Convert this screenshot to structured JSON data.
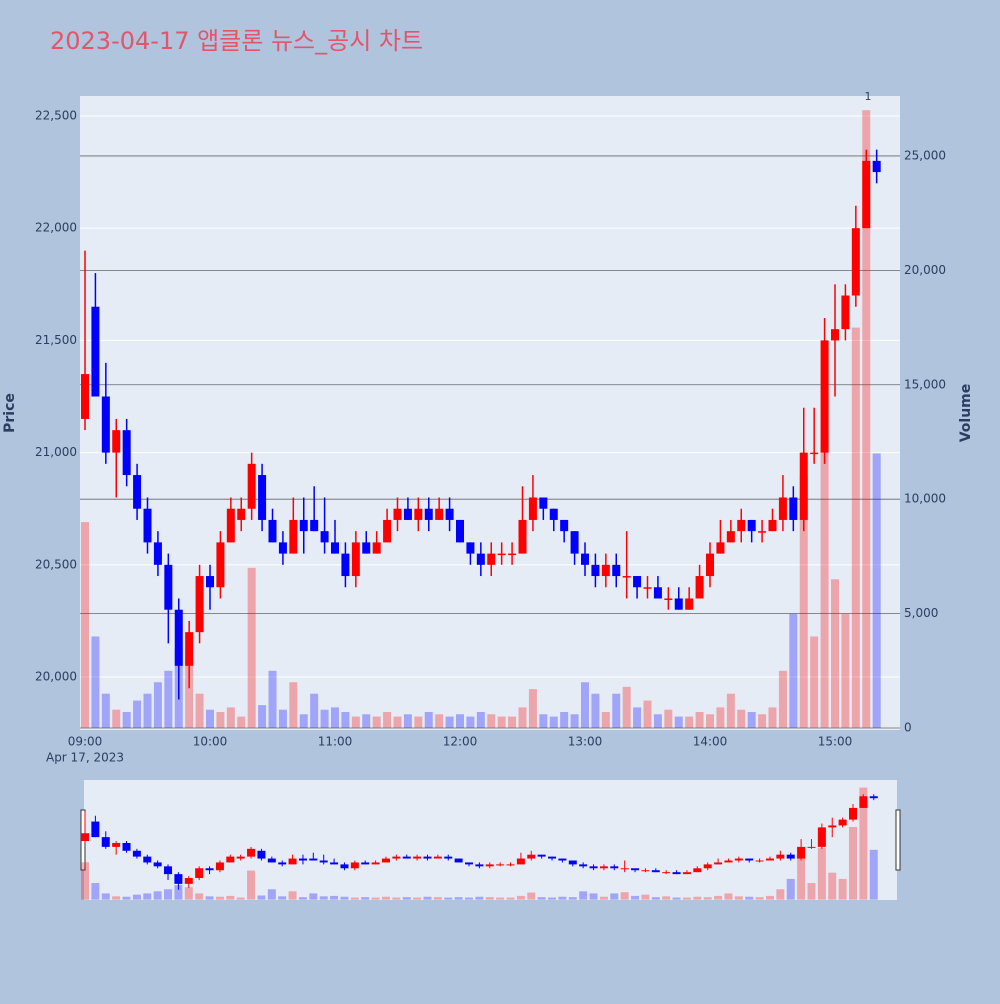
{
  "chart_data": {
    "type": "candlestick",
    "title": "2023-04-17 앱클론 뉴스_공시 차트",
    "y_title": "Price",
    "y2_title": "Volume",
    "x_date": "Apr 17, 2023",
    "annotation": "1",
    "up_color": "#ff0000",
    "down_color": "#0000ff",
    "ylim": [
      19764,
      22589
    ],
    "yticks": [
      {
        "value": 20000,
        "label": "20,000"
      },
      {
        "value": 20500,
        "label": "20,500"
      },
      {
        "value": 21000,
        "label": "21,000"
      },
      {
        "value": 21500,
        "label": "21,500"
      },
      {
        "value": 22000,
        "label": "22,000"
      },
      {
        "value": 22500,
        "label": "22,500"
      }
    ],
    "y2lim": [
      -87,
      27620
    ],
    "y2ticks": [
      0,
      {
        "value": 5000,
        "label": "5,000"
      },
      {
        "value": 10000,
        "label": "10,000"
      },
      {
        "value": 15000,
        "label": "15,000"
      },
      {
        "value": 20000,
        "label": "20,000"
      },
      {
        "value": 25000,
        "label": "25,000"
      }
    ],
    "xticks": [
      "09:00",
      "10:00",
      "11:00",
      "12:00",
      "13:00",
      "14:00",
      "15:00"
    ],
    "x": [
      "09:00",
      "09:05",
      "09:10",
      "09:15",
      "09:20",
      "09:25",
      "09:30",
      "09:35",
      "09:40",
      "09:45",
      "09:50",
      "09:55",
      "10:00",
      "10:05",
      "10:10",
      "10:15",
      "10:20",
      "10:25",
      "10:30",
      "10:35",
      "10:40",
      "10:45",
      "10:50",
      "10:55",
      "11:00",
      "11:05",
      "11:10",
      "11:15",
      "11:20",
      "11:25",
      "11:30",
      "11:35",
      "11:40",
      "11:45",
      "11:50",
      "11:55",
      "12:00",
      "12:05",
      "12:10",
      "12:15",
      "12:20",
      "12:25",
      "12:30",
      "12:35",
      "12:40",
      "12:45",
      "12:50",
      "12:55",
      "13:00",
      "13:05",
      "13:10",
      "13:15",
      "13:20",
      "13:25",
      "13:30",
      "13:35",
      "13:40",
      "13:45",
      "13:50",
      "13:55",
      "14:00",
      "14:05",
      "14:10",
      "14:15",
      "14:20",
      "14:25",
      "14:30",
      "14:35",
      "14:40",
      "14:45",
      "14:50",
      "14:55",
      "15:00",
      "15:05",
      "15:10",
      "15:15",
      "15:20"
    ],
    "open": [
      21150,
      21650,
      21250,
      21000,
      21100,
      20900,
      20750,
      20600,
      20500,
      20300,
      20050,
      20200,
      20450,
      20400,
      20600,
      20700,
      20750,
      20900,
      20700,
      20600,
      20550,
      20700,
      20700,
      20650,
      20600,
      20550,
      20450,
      20600,
      20550,
      20600,
      20700,
      20750,
      20700,
      20750,
      20700,
      20750,
      20700,
      20600,
      20550,
      20500,
      20550,
      20550,
      20550,
      20700,
      20800,
      20750,
      20700,
      20650,
      20550,
      20500,
      20450,
      20500,
      20450,
      20450,
      20400,
      20400,
      20350,
      20350,
      20300,
      20350,
      20450,
      20550,
      20600,
      20650,
      20700,
      20650,
      20650,
      20700,
      20800,
      20700,
      21000,
      21000,
      21500,
      21550,
      21700,
      22000,
      22300
    ],
    "high": [
      21900,
      21800,
      21400,
      21150,
      21150,
      20950,
      20800,
      20650,
      20550,
      20350,
      20250,
      20500,
      20500,
      20650,
      20800,
      20800,
      21000,
      20950,
      20750,
      20650,
      20800,
      20800,
      20850,
      20800,
      20700,
      20600,
      20650,
      20650,
      20650,
      20750,
      20800,
      20800,
      20800,
      20800,
      20800,
      20800,
      20700,
      20600,
      20600,
      20600,
      20600,
      20600,
      20850,
      20900,
      20800,
      20750,
      20700,
      20650,
      20600,
      20550,
      20550,
      20550,
      20650,
      20450,
      20450,
      20450,
      20400,
      20400,
      20400,
      20500,
      20600,
      20700,
      20700,
      20750,
      20700,
      20700,
      20750,
      20900,
      20850,
      21200,
      21200,
      21600,
      21750,
      21750,
      22100,
      22350,
      22350
    ],
    "low": [
      21100,
      21250,
      20950,
      20800,
      20850,
      20700,
      20550,
      20450,
      20150,
      19900,
      19950,
      20150,
      20300,
      20350,
      20600,
      20650,
      20700,
      20650,
      20600,
      20500,
      20550,
      20550,
      20650,
      20550,
      20550,
      20400,
      20400,
      20550,
      20550,
      20600,
      20650,
      20700,
      20650,
      20650,
      20700,
      20650,
      20600,
      20500,
      20450,
      20450,
      20500,
      20500,
      20550,
      20650,
      20700,
      20650,
      20600,
      20500,
      20450,
      20400,
      20400,
      20400,
      20350,
      20350,
      20350,
      20350,
      20300,
      20300,
      20300,
      20350,
      20400,
      20550,
      20600,
      20600,
      20600,
      20600,
      20650,
      20650,
      20650,
      20650,
      20950,
      20950,
      21250,
      21500,
      21650,
      22000,
      22200
    ],
    "close": [
      21350,
      21250,
      21000,
      21100,
      20900,
      20750,
      20600,
      20500,
      20300,
      20050,
      20200,
      20450,
      20400,
      20600,
      20750,
      20750,
      20950,
      20700,
      20600,
      20550,
      20700,
      20650,
      20650,
      20600,
      20550,
      20450,
      20600,
      20550,
      20600,
      20700,
      20750,
      20700,
      20750,
      20700,
      20750,
      20700,
      20600,
      20550,
      20500,
      20550,
      20550,
      20550,
      20700,
      20800,
      20750,
      20700,
      20650,
      20550,
      20500,
      20450,
      20500,
      20450,
      20450,
      20400,
      20400,
      20350,
      20350,
      20300,
      20350,
      20450,
      20550,
      20600,
      20650,
      20700,
      20650,
      20650,
      20700,
      20800,
      20700,
      21000,
      21000,
      21500,
      21550,
      21700,
      22000,
      22300,
      22250
    ],
    "volume": [
      9000,
      4000,
      1500,
      800,
      700,
      1200,
      1500,
      2000,
      2500,
      3500,
      3000,
      1500,
      800,
      700,
      900,
      500,
      7000,
      1000,
      2500,
      800,
      2000,
      600,
      1500,
      800,
      900,
      700,
      500,
      600,
      500,
      700,
      500,
      600,
      500,
      700,
      600,
      500,
      600,
      500,
      700,
      600,
      500,
      500,
      900,
      1700,
      600,
      500,
      700,
      600,
      2000,
      1500,
      700,
      1500,
      1800,
      900,
      1200,
      600,
      800,
      500,
      500,
      700,
      600,
      900,
      1500,
      800,
      700,
      600,
      900,
      2500,
      5000,
      11000,
      4000,
      12500,
      6500,
      5000,
      17500,
      27000,
      12000
    ]
  }
}
